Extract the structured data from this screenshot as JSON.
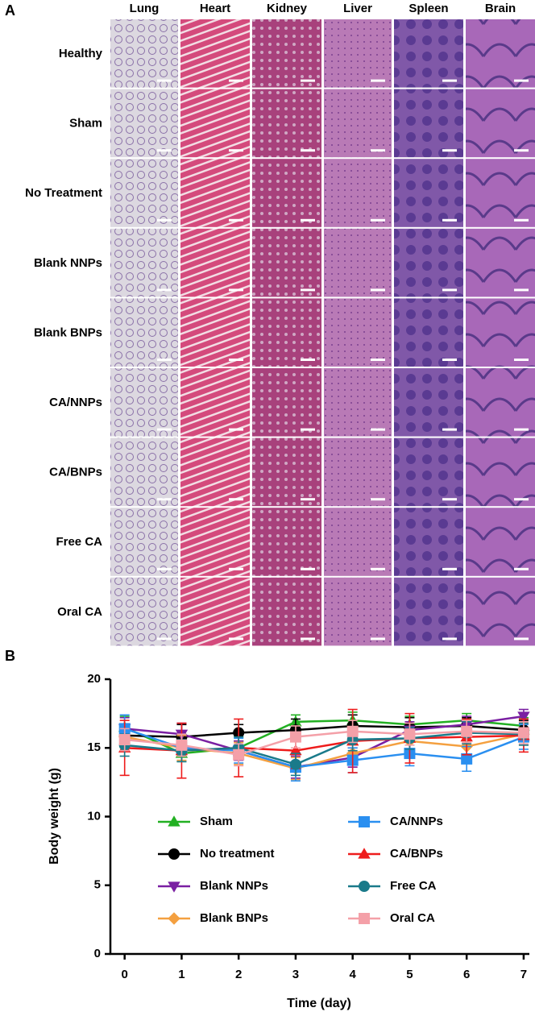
{
  "panels": {
    "a": "A",
    "b": "B"
  },
  "histology": {
    "columns": [
      "Lung",
      "Heart",
      "Kidney",
      "Liver",
      "Spleen",
      "Brain"
    ],
    "rows": [
      "Healthy",
      "Sham",
      "No Treatment",
      "Blank NNPs",
      "Blank BNPs",
      "CA/NNPs",
      "CA/BNPs",
      "Free CA",
      "Oral CA"
    ]
  },
  "chart_data": {
    "type": "line",
    "x_label": "Time (day)",
    "y_label": "Body weight (g)",
    "x": [
      0,
      1,
      2,
      3,
      4,
      5,
      6,
      7
    ],
    "xlim": [
      -0.25,
      7.1
    ],
    "xticks": [
      0,
      1,
      2,
      3,
      4,
      5,
      6,
      7
    ],
    "ylim": [
      0,
      20
    ],
    "yticks": [
      0,
      5,
      10,
      15,
      20
    ],
    "legend": "center",
    "series": [
      {
        "name": "Sham",
        "color": "#22b022",
        "marker": "triangle",
        "values": [
          16.5,
          14.6,
          15.0,
          16.9,
          17.0,
          16.7,
          17.0,
          16.6
        ],
        "errors": [
          0.8,
          0.6,
          0.8,
          0.5,
          0.6,
          0.6,
          0.5,
          0.6
        ]
      },
      {
        "name": "No treatment",
        "color": "#000000",
        "marker": "circle",
        "values": [
          15.9,
          15.8,
          16.1,
          16.3,
          16.6,
          16.5,
          16.6,
          16.3
        ],
        "errors": [
          0.8,
          0.9,
          0.6,
          0.8,
          0.8,
          0.7,
          0.6,
          0.7
        ]
      },
      {
        "name": "Blank NNPs",
        "color": "#7a1fa2",
        "marker": "triangle-down",
        "values": [
          16.4,
          16.0,
          14.8,
          13.6,
          14.3,
          16.3,
          16.7,
          17.3
        ],
        "errors": [
          0.8,
          0.8,
          0.7,
          0.8,
          0.7,
          0.6,
          0.6,
          0.5
        ]
      },
      {
        "name": "Blank BNPs",
        "color": "#f4a040",
        "marker": "diamond",
        "values": [
          15.8,
          15.0,
          14.6,
          13.5,
          14.6,
          15.5,
          15.1,
          16.0
        ],
        "errors": [
          0.8,
          0.9,
          0.8,
          0.8,
          0.8,
          0.8,
          0.9,
          0.8
        ]
      },
      {
        "name": "CA/NNPs",
        "color": "#2a8ff0",
        "marker": "square",
        "values": [
          16.4,
          15.0,
          14.8,
          13.6,
          14.1,
          14.6,
          14.2,
          15.8
        ],
        "errors": [
          1.0,
          1.0,
          0.9,
          1.0,
          0.9,
          0.9,
          0.9,
          0.9
        ]
      },
      {
        "name": "CA/BNPs",
        "color": "#ee1c1c",
        "marker": "triangle",
        "values": [
          15.0,
          14.8,
          15.0,
          14.8,
          15.5,
          15.7,
          15.8,
          15.9
        ],
        "errors": [
          2.0,
          2.0,
          2.1,
          1.3,
          2.3,
          1.8,
          1.3,
          1.2
        ]
      },
      {
        "name": "Free CA",
        "color": "#1a7a8a",
        "marker": "circle",
        "values": [
          15.2,
          14.8,
          15.0,
          13.8,
          15.6,
          15.7,
          16.1,
          16.0
        ],
        "errors": [
          0.8,
          0.8,
          0.8,
          0.8,
          0.8,
          0.8,
          0.8,
          0.8
        ]
      },
      {
        "name": "Oral CA",
        "color": "#f4a0a8",
        "marker": "square",
        "values": [
          15.6,
          15.2,
          14.5,
          15.8,
          16.2,
          16.0,
          16.2,
          16.1
        ],
        "errors": [
          0.8,
          0.8,
          0.8,
          0.8,
          0.8,
          0.8,
          0.8,
          0.8
        ]
      }
    ]
  }
}
